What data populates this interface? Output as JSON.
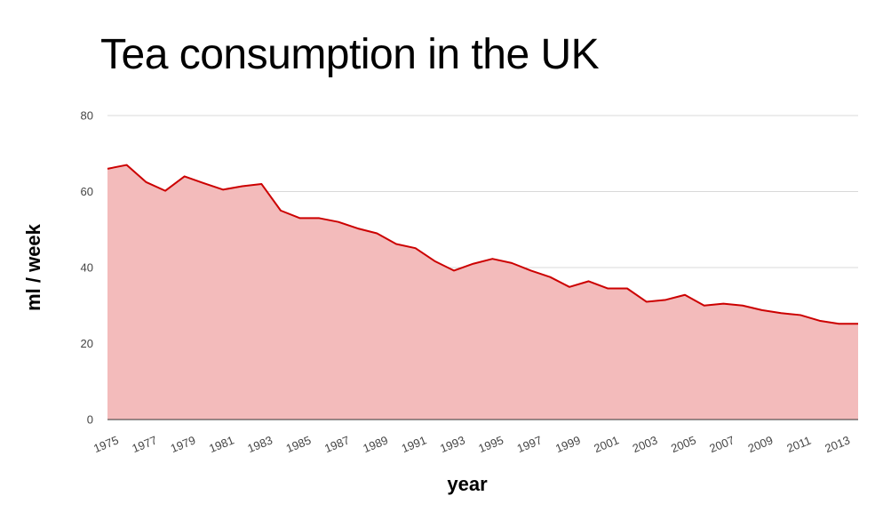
{
  "chart_data": {
    "type": "area",
    "title": "Tea consumption in the UK",
    "xlabel": "year",
    "ylabel": "ml / week",
    "ylim": [
      0,
      80
    ],
    "yticks": [
      0,
      20,
      40,
      60,
      80
    ],
    "xlim": [
      1975,
      2014
    ],
    "xtick_labels": [
      "1975",
      "1977",
      "1979",
      "1981",
      "1983",
      "1985",
      "1987",
      "1989",
      "1991",
      "1993",
      "1995",
      "1997",
      "1999",
      "2001",
      "2003",
      "2005",
      "2007",
      "2009",
      "2011",
      "2013"
    ],
    "grid": true,
    "legend": "none",
    "series": [
      {
        "x": [
          1975,
          1976,
          1977,
          1978,
          1979,
          1980,
          1981,
          1982,
          1983,
          1984,
          1985,
          1986,
          1987,
          1988,
          1989,
          1990,
          1991,
          1992,
          1993,
          1994,
          1995,
          1996,
          1997,
          1998,
          1999,
          2000,
          2001,
          2002,
          2003,
          2004,
          2005,
          2006,
          2007,
          2008,
          2009,
          2010,
          2011,
          2012,
          2013,
          2014
        ],
        "values": [
          66,
          67,
          62.5,
          60.2,
          64,
          62.2,
          60.5,
          61.4,
          62,
          55,
          53,
          53,
          52,
          50.3,
          49,
          46.2,
          45.1,
          41.7,
          39.2,
          41,
          42.3,
          41.2,
          39.2,
          37.5,
          34.9,
          36.4,
          34.5,
          34.5,
          31,
          31.5,
          32.8,
          30,
          30.5,
          30,
          28.8,
          28,
          27.5,
          26,
          25.2,
          25.2
        ]
      }
    ],
    "colors": {
      "line": "#cc0000",
      "fill": "#f3bbbb",
      "grid": "#d9d9d9",
      "axis": "#333333"
    }
  }
}
